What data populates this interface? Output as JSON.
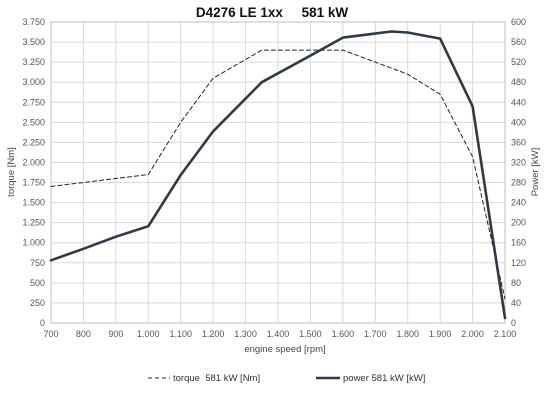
{
  "chart_data": {
    "type": "line",
    "title": "D4276 LE 1xx     581 kW",
    "xlabel": "engine speed [rpm]",
    "ylabel_left": "torque [Nm]",
    "ylabel_right": "Power [kW]",
    "xlim": [
      700,
      2100
    ],
    "ylim_left": [
      0,
      3750
    ],
    "ylim_right": [
      0,
      600
    ],
    "grid": true,
    "legend_placement": "bottom",
    "x_ticks": [
      700,
      800,
      900,
      1000,
      1100,
      1200,
      1300,
      1400,
      1500,
      1600,
      1700,
      1800,
      1900,
      2000,
      2100
    ],
    "x_tick_labels": [
      "700",
      "800",
      "900",
      "1.000",
      "1.100",
      "1.200",
      "1.300",
      "1.400",
      "1.500",
      "1.600",
      "1.700",
      "1.800",
      "1.900",
      "2.000",
      "2.100"
    ],
    "y_left_ticks": [
      0,
      250,
      500,
      750,
      1000,
      1250,
      1500,
      1750,
      2000,
      2250,
      2500,
      2750,
      3000,
      3250,
      3500,
      3750
    ],
    "y_left_tick_labels": [
      "0",
      "250",
      "500",
      "750",
      "1.000",
      "1.250",
      "1.500",
      "1.750",
      "2.000",
      "2.250",
      "2.500",
      "2.750",
      "3.000",
      "3.250",
      "3.500",
      "3.750"
    ],
    "y_right_ticks": [
      0,
      40,
      80,
      120,
      160,
      200,
      240,
      280,
      320,
      360,
      400,
      440,
      480,
      520,
      560,
      600
    ],
    "y_right_tick_labels": [
      "0",
      "40",
      "80",
      "120",
      "160",
      "200",
      "240",
      "280",
      "320",
      "360",
      "400",
      "440",
      "480",
      "520",
      "560",
      "600"
    ],
    "series": [
      {
        "name": "torque  581 kW [Nm]",
        "axis": "left",
        "style": "dashed",
        "color": "#222222",
        "x": [
          700,
          1000,
          1100,
          1200,
          1350,
          1500,
          1600,
          1800,
          1900,
          2000,
          2100
        ],
        "y": [
          1700,
          1850,
          2500,
          3050,
          3400,
          3400,
          3400,
          3100,
          2850,
          2070,
          300
        ]
      },
      {
        "name": "power 581 kW [kW]",
        "axis": "right",
        "style": "solid",
        "color": "#2e3a45",
        "x": [
          700,
          800,
          900,
          1000,
          1100,
          1200,
          1350,
          1500,
          1600,
          1750,
          1800,
          1900,
          2000,
          2100
        ],
        "y": [
          125,
          148,
          172,
          193,
          295,
          382,
          480,
          533,
          569,
          581,
          579,
          567,
          432,
          10
        ]
      }
    ]
  }
}
